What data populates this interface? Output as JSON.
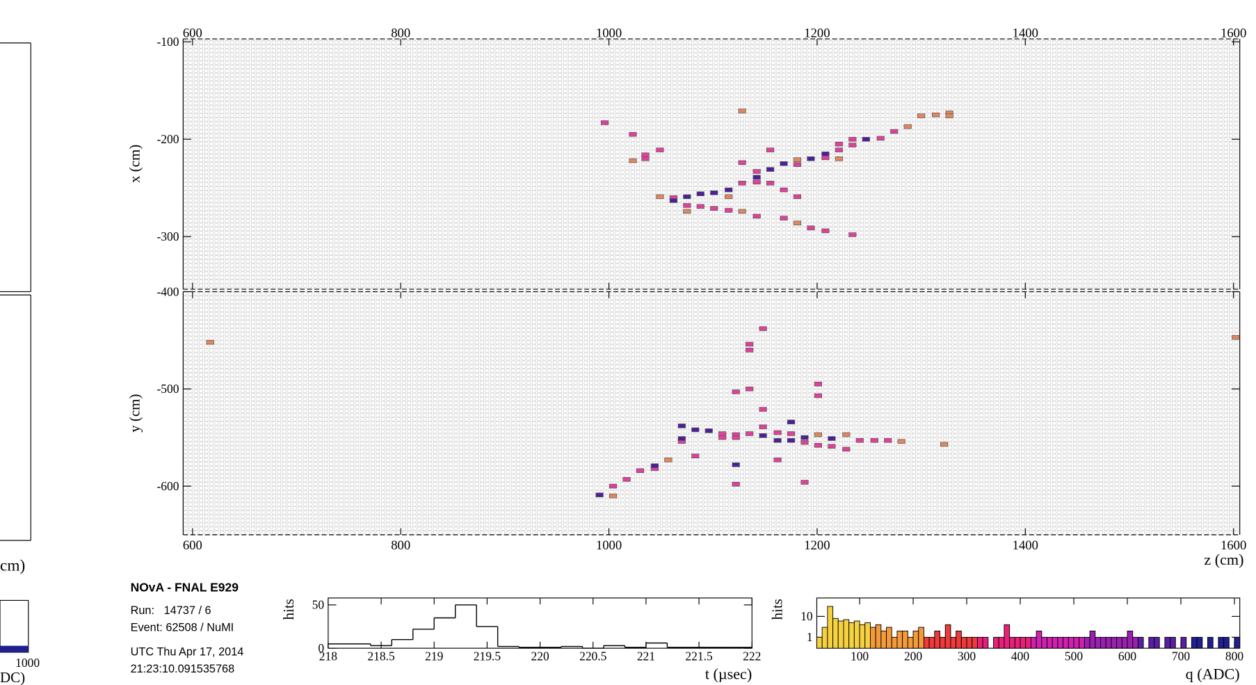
{
  "left_panel": {
    "axis_label": "cm)",
    "tick_label": "1000",
    "axis_label_2": "DC)"
  },
  "info": {
    "title": "NOvA - FNAL E929",
    "run": "Run:   14737 / 6",
    "event": "Event: 62508 / NuMI",
    "date": "UTC Thu Apr 17, 2014",
    "time": "21:23:10.091535768"
  },
  "chart_data": [
    {
      "type": "scatter",
      "ylabel": "x (cm)",
      "xlim": [
        591,
        1606
      ],
      "ylim": [
        -354,
        -97
      ],
      "xticks": [
        600,
        800,
        1000,
        1200,
        1400,
        1600
      ],
      "yticks": [
        -100,
        -200,
        -300
      ],
      "series": [
        {
          "color": "#e0875e",
          "x": [
            1023,
            1049,
            1075,
            1115,
            1128,
            1128,
            1181,
            1181,
            1221,
            1287,
            1300,
            1314,
            1327,
            1327
          ],
          "values": [
            -222,
            -259,
            -274,
            -259,
            -171,
            -274,
            -221,
            -286,
            -220,
            -187,
            -176,
            -175,
            -173,
            -176
          ]
        },
        {
          "color": "#e0409a",
          "x": [
            996,
            1023,
            1035,
            1035,
            1049,
            1062,
            1075,
            1088,
            1101,
            1115,
            1128,
            1128,
            1142,
            1142,
            1142,
            1155,
            1155,
            1168,
            1168,
            1181,
            1181,
            1194,
            1208,
            1208,
            1221,
            1221,
            1234,
            1234,
            1234,
            1261,
            1274
          ],
          "values": [
            -183,
            -195,
            -216,
            -220,
            -211,
            -260,
            -268,
            -269,
            -271,
            -273,
            -224,
            -245,
            -233,
            -244,
            -279,
            -211,
            -245,
            -252,
            -281,
            -226,
            -259,
            -291,
            -219,
            -294,
            -205,
            -211,
            -200,
            -206,
            -298,
            -199,
            -192
          ]
        },
        {
          "color": "#4b1f9a",
          "x": [
            1062,
            1075,
            1088,
            1101,
            1115,
            1142,
            1155,
            1168,
            1194,
            1208,
            1247
          ],
          "values": [
            -263,
            -259,
            -256,
            -255,
            -252,
            -239,
            -231,
            -225,
            -220,
            -215,
            -200
          ]
        }
      ]
    },
    {
      "type": "scatter",
      "ylabel": "y (cm)",
      "xlabel": "z (cm)",
      "xlim": [
        591,
        1606
      ],
      "ylim": [
        -650,
        -400
      ],
      "xticks": [
        600,
        800,
        1000,
        1200,
        1400,
        1600
      ],
      "yticks": [
        -400,
        -500,
        -600
      ],
      "series": [
        {
          "color": "#e0875e",
          "x": [
            617,
            1602,
            1004,
            1057,
            1201,
            1228,
            1281,
            1322
          ],
          "values": [
            -452,
            -447,
            -610,
            -573,
            -547,
            -547,
            -554,
            -557
          ]
        },
        {
          "color": "#e0409a",
          "x": [
            1004,
            1017,
            1030,
            1044,
            1070,
            1083,
            1109,
            1109,
            1122,
            1122,
            1122,
            1122,
            1135,
            1135,
            1135,
            1135,
            1148,
            1148,
            1148,
            1162,
            1162,
            1175,
            1188,
            1188,
            1201,
            1201,
            1201,
            1214,
            1228,
            1241,
            1255,
            1268
          ],
          "values": [
            -600,
            -593,
            -584,
            -582,
            -554,
            -569,
            -546,
            -550,
            -503,
            -547,
            -550,
            -598,
            -454,
            -460,
            -500,
            -546,
            -438,
            -521,
            -539,
            -545,
            -573,
            -546,
            -555,
            -596,
            -495,
            -507,
            -558,
            -559,
            -562,
            -553,
            -553,
            -553
          ]
        },
        {
          "color": "#4b1f9a",
          "x": [
            991,
            1044,
            1070,
            1070,
            1083,
            1096,
            1122,
            1148,
            1162,
            1175,
            1175,
            1188,
            1214
          ],
          "values": [
            -609,
            -579,
            -538,
            -551,
            -542,
            -543,
            -578,
            -548,
            -553,
            -534,
            -553,
            -550,
            -551
          ]
        }
      ]
    },
    {
      "type": "histogram",
      "ylabel": "hits",
      "xlabel": "t (µsec)",
      "xlim": [
        218,
        222
      ],
      "ylim": [
        0,
        58
      ],
      "xticks": [
        218,
        218.5,
        219,
        219.5,
        220,
        220.5,
        221,
        221.5,
        222
      ],
      "yticks": [
        0,
        50
      ],
      "color": "#000000",
      "bins": [
        218,
        218.2,
        218.4,
        218.6,
        218.8,
        219,
        219.2,
        219.4,
        219.6,
        219.8,
        220,
        220.2,
        220.4,
        220.6,
        220.8,
        221,
        221.2,
        221.4,
        221.6,
        221.8,
        222
      ],
      "values": [
        5,
        5,
        3,
        10,
        22,
        35,
        50,
        25,
        2,
        1,
        1,
        2,
        0,
        3,
        1,
        6,
        1,
        1,
        1,
        1
      ]
    },
    {
      "type": "histogram",
      "ylabel": "hits",
      "xlabel": "q (ADC)",
      "log_y": true,
      "xlim": [
        20,
        810
      ],
      "ylim": [
        0.3,
        76
      ],
      "xticks": [
        100,
        200,
        300,
        400,
        500,
        600,
        700,
        800
      ],
      "yticks": [
        1,
        10
      ],
      "palette": [
        "#f5d142",
        "#f59a3a",
        "#ee3a3a",
        "#e8207a",
        "#d020b0",
        "#9a20b0",
        "#5a1fa0",
        "#1f1f90"
      ],
      "bins": [
        20,
        30,
        40,
        50,
        60,
        70,
        80,
        90,
        100,
        110,
        120,
        130,
        140,
        150,
        160,
        170,
        180,
        190,
        200,
        210,
        220,
        230,
        240,
        250,
        260,
        270,
        280,
        290,
        300,
        310,
        320,
        330,
        340,
        350,
        360,
        370,
        380,
        390,
        400,
        410,
        420,
        430,
        440,
        450,
        460,
        470,
        480,
        490,
        500,
        510,
        520,
        530,
        540,
        550,
        560,
        570,
        580,
        590,
        600,
        610,
        620,
        630,
        640,
        650,
        660,
        670,
        680,
        690,
        700,
        710,
        720,
        730,
        740,
        750,
        760,
        770,
        780,
        790,
        800,
        810
      ],
      "values": [
        1,
        3,
        30,
        8,
        6,
        7,
        5,
        6,
        4,
        5,
        3,
        4,
        2,
        3,
        1,
        2,
        2,
        1,
        2,
        3,
        1,
        1,
        2,
        1,
        4,
        1,
        2,
        1,
        1,
        1,
        1,
        1,
        0,
        1,
        1,
        4,
        1,
        1,
        1,
        1,
        1,
        2,
        1,
        1,
        1,
        1,
        1,
        1,
        1,
        1,
        1,
        2,
        1,
        1,
        1,
        1,
        1,
        1,
        2,
        1,
        1,
        0,
        1,
        1,
        0,
        1,
        1,
        0,
        1,
        0,
        1,
        1,
        0,
        1,
        0,
        1,
        1,
        0,
        1
      ]
    }
  ]
}
